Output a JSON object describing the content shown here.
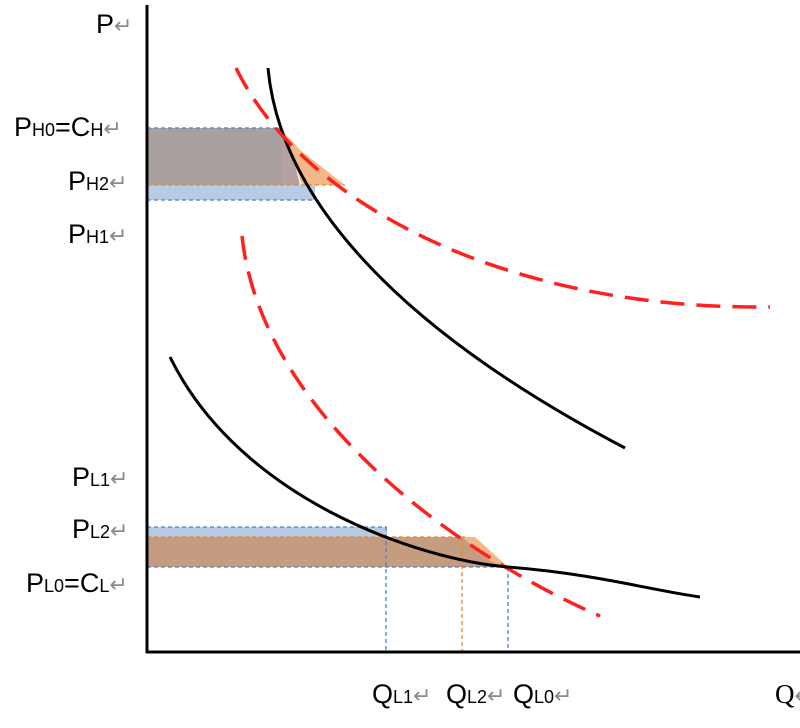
{
  "axes": {
    "y_label": "P",
    "x_label": "Q",
    "return_mark": "↵"
  },
  "price_labels": {
    "ph0": {
      "main": "P",
      "sub": "H0",
      "eq": "=C",
      "eq_sub": "H"
    },
    "ph2": {
      "main": "P",
      "sub": "H2"
    },
    "ph1": {
      "main": "P",
      "sub": "H1"
    },
    "pl1": {
      "main": "P",
      "sub": "L1"
    },
    "pl2": {
      "main": "P",
      "sub": "L2"
    },
    "pl0": {
      "main": "P",
      "sub": "L0",
      "eq": "=C",
      "eq_sub": "L"
    }
  },
  "quantity_labels": {
    "ql1": {
      "main": "Q",
      "sub": "L1"
    },
    "ql2": {
      "main": "Q",
      "sub": "L2"
    },
    "ql0": {
      "main": "Q",
      "sub": "L0"
    }
  },
  "colors": {
    "demand_curve": "#000000",
    "dashed_curve": "#ff2020",
    "gray_area": "#a9a0a0",
    "orange_area": "#f4b888",
    "blue_area": "#b8cbe4",
    "brown_area": "#c59c80",
    "blue_dash": "#4a7fc8",
    "orange_dash": "#e8862a"
  }
}
